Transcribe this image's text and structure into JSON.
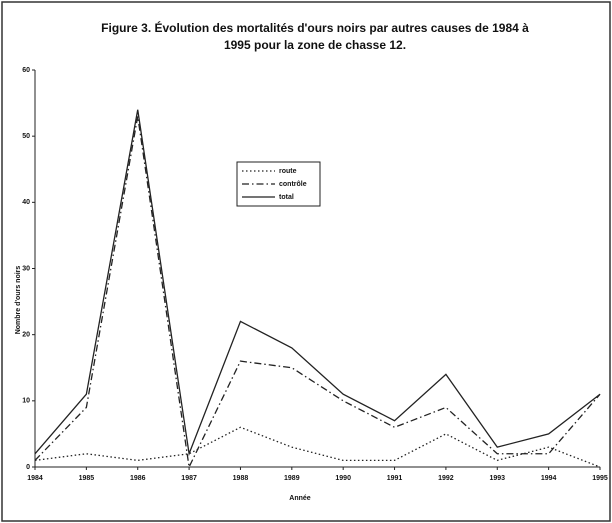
{
  "chart_data": {
    "type": "line",
    "title": "Figure 3. Évolution des mortalités d'ours noirs par autres causes de 1984 à 1995 pour la zone de chasse 12.",
    "x_label": "Année",
    "y_label": "Nombre d'ours noirs",
    "categories": [
      "1984",
      "1985",
      "1986",
      "1987",
      "1988",
      "1989",
      "1990",
      "1991",
      "1992",
      "1993",
      "1994",
      "1995"
    ],
    "series": [
      {
        "name": "route",
        "color": "#222222",
        "dash": "dotted",
        "values": [
          1,
          2,
          1,
          2,
          6,
          3,
          1,
          1,
          5,
          1,
          3,
          0
        ]
      },
      {
        "name": "contrôle",
        "color": "#222222",
        "dash": "dashdot",
        "values": [
          1,
          9,
          53,
          0,
          16,
          15,
          10,
          6,
          9,
          2,
          2,
          11
        ]
      },
      {
        "name": "total",
        "color": "#222222",
        "dash": "solid",
        "values": [
          2,
          11,
          54,
          2,
          22,
          18,
          11,
          7,
          14,
          3,
          5,
          11
        ]
      }
    ],
    "ylim": [
      0,
      60
    ],
    "yticks": [
      0,
      10,
      20,
      30,
      40,
      50,
      60
    ],
    "grid": false
  }
}
